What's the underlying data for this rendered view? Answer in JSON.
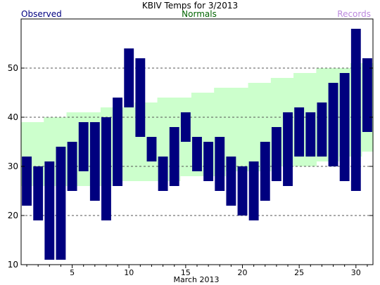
{
  "chart_data": {
    "type": "bar",
    "title": "KBIV Temps for 3/2013",
    "legend": {
      "observed": "Observed",
      "normals": "Normals",
      "records": "Records",
      "placement": "top"
    },
    "xlabel": "March 2013",
    "ylabel": "",
    "xlim": [
      0.5,
      31.5
    ],
    "ylim": [
      10,
      60
    ],
    "yticks": [
      10,
      20,
      30,
      40,
      50
    ],
    "xticks": [
      5,
      10,
      15,
      20,
      25,
      30
    ],
    "grid": "horizontal dashed",
    "colors": {
      "observed": "#00007f",
      "observed_legend": "#000080",
      "normals_band": "#ccffcc",
      "normals_legend": "#006400",
      "records_legend": "#bb88dd"
    },
    "days": [
      1,
      2,
      3,
      4,
      5,
      6,
      7,
      8,
      9,
      10,
      11,
      12,
      13,
      14,
      15,
      16,
      17,
      18,
      19,
      20,
      21,
      22,
      23,
      24,
      25,
      26,
      27,
      28,
      29,
      30,
      31
    ],
    "observed_high": [
      32,
      30,
      31,
      34,
      35,
      39,
      39,
      40,
      44,
      54,
      52,
      36,
      32,
      38,
      41,
      36,
      35,
      36,
      32,
      30,
      31,
      35,
      38,
      41,
      42,
      41,
      43,
      47,
      49,
      58,
      52
    ],
    "observed_low": [
      22,
      19,
      11,
      11,
      25,
      29,
      23,
      19,
      26,
      42,
      36,
      31,
      25,
      26,
      35,
      29,
      27,
      25,
      22,
      20,
      19,
      23,
      27,
      26,
      32,
      32,
      32,
      30,
      27,
      25,
      37
    ],
    "normal_high": [
      39,
      39,
      40,
      40,
      41,
      41,
      41,
      42,
      42,
      42,
      43,
      43,
      44,
      44,
      44,
      45,
      45,
      46,
      46,
      46,
      47,
      47,
      48,
      48,
      49,
      49,
      50,
      50,
      50,
      51,
      51
    ],
    "normal_low": [
      26,
      26,
      26,
      26,
      26,
      26,
      26,
      26,
      27,
      27,
      27,
      27,
      27,
      27,
      28,
      28,
      28,
      28,
      29,
      29,
      29,
      29,
      30,
      30,
      30,
      30,
      31,
      31,
      32,
      32,
      33
    ]
  }
}
